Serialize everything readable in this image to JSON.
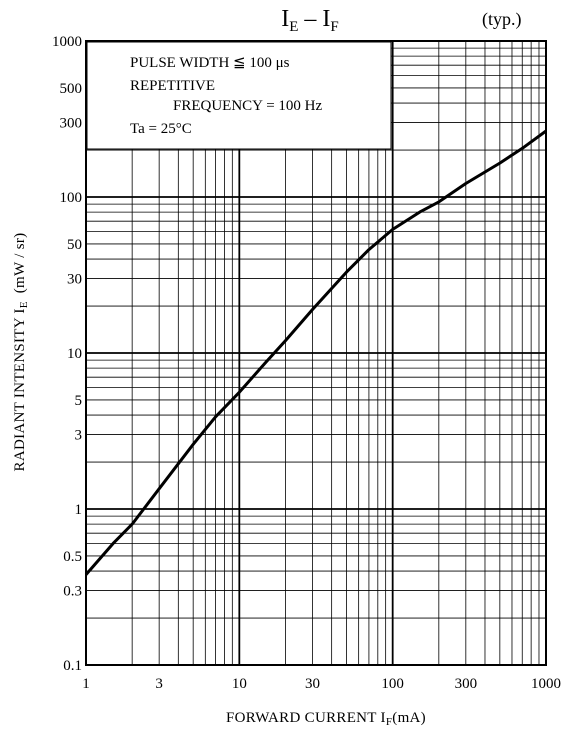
{
  "chart_data": {
    "type": "line",
    "title": {
      "main_1": "I",
      "sub_1": "E",
      "dash": " – ",
      "main_2": "I",
      "sub_2": "F"
    },
    "typ_label": "(typ.)",
    "x_scale": "log",
    "y_scale": "log",
    "xlim": [
      1,
      1000
    ],
    "ylim": [
      0.1,
      1000
    ],
    "x_ticks": [
      {
        "value": 1,
        "label": "1"
      },
      {
        "value": 3,
        "label": "3"
      },
      {
        "value": 10,
        "label": "10"
      },
      {
        "value": 30,
        "label": "30"
      },
      {
        "value": 100,
        "label": "100"
      },
      {
        "value": 300,
        "label": "300"
      },
      {
        "value": 1000,
        "label": "1000"
      }
    ],
    "y_ticks": [
      {
        "value": 0.1,
        "label": "0.1"
      },
      {
        "value": 0.3,
        "label": "0.3"
      },
      {
        "value": 0.5,
        "label": "0.5"
      },
      {
        "value": 1,
        "label": "1"
      },
      {
        "value": 3,
        "label": "3"
      },
      {
        "value": 5,
        "label": "5"
      },
      {
        "value": 10,
        "label": "10"
      },
      {
        "value": 30,
        "label": "30"
      },
      {
        "value": 50,
        "label": "50"
      },
      {
        "value": 100,
        "label": "100"
      },
      {
        "value": 300,
        "label": "300"
      },
      {
        "value": 500,
        "label": "500"
      },
      {
        "value": 1000,
        "label": "1000"
      }
    ],
    "xlabel": {
      "text": "FORWARD CURRENT I",
      "sub": "F",
      "unit": "(mA)"
    },
    "ylabel": {
      "text": "RADIANT INTENSITY  I",
      "sub": "E",
      "unit": "(mW / sr)"
    },
    "grid": true,
    "conditions": [
      "PULSE WIDTH ≦ 100 μs",
      "REPETITIVE",
      "FREQUENCY = 100 Hz",
      "Ta = 25°C"
    ],
    "series": [
      {
        "x": [
          1,
          1.5,
          2,
          3,
          5,
          7,
          10,
          15,
          20,
          30,
          50,
          70,
          100,
          150,
          200,
          300,
          500,
          700,
          1000
        ],
        "y": [
          0.38,
          0.6,
          0.8,
          1.35,
          2.6,
          3.9,
          5.6,
          8.8,
          12,
          19,
          33,
          46,
          62,
          80,
          93,
          122,
          165,
          205,
          265
        ]
      }
    ]
  }
}
